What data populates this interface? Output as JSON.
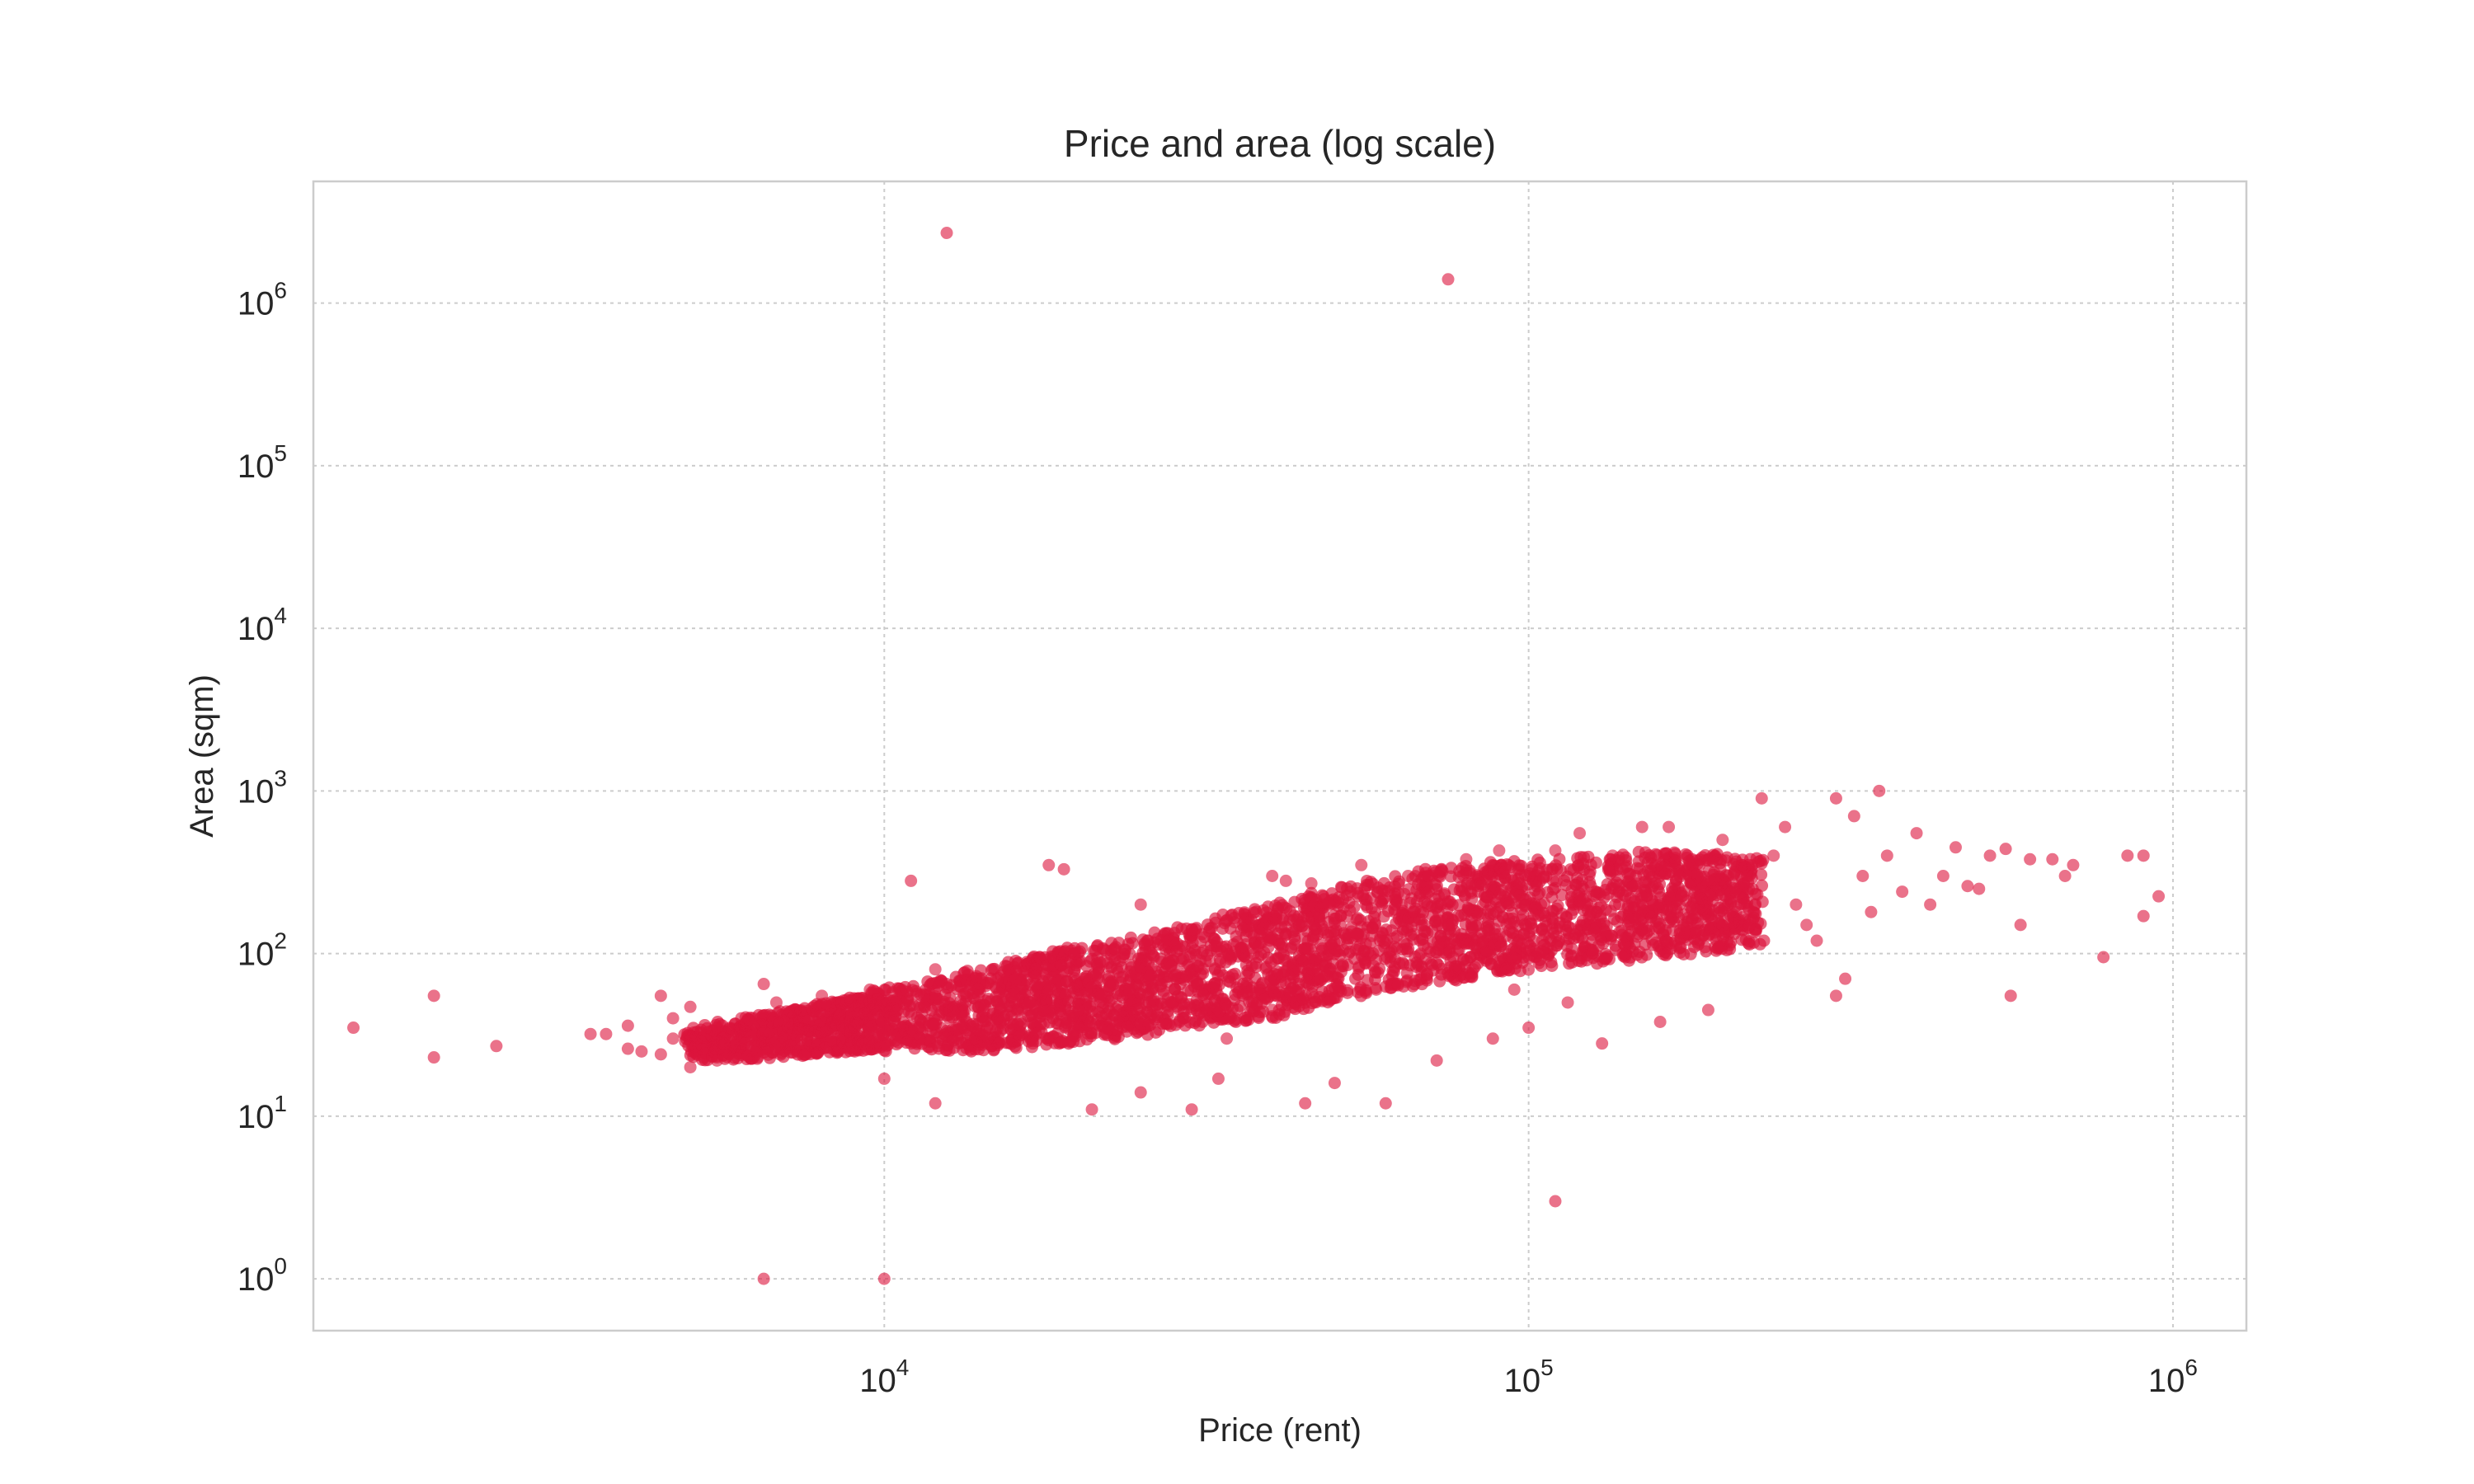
{
  "chart_data": {
    "type": "scatter",
    "title": "Price and area (log scale)",
    "xlabel": "Price (rent)",
    "ylabel": "Area (sqm)",
    "xscale": "log",
    "yscale": "log",
    "xlim": [
      1300,
      1300000
    ],
    "ylim": [
      0.48,
      5600000
    ],
    "xticks": [
      {
        "value": 10000,
        "base": "10",
        "exp": "4"
      },
      {
        "value": 100000,
        "base": "10",
        "exp": "5"
      },
      {
        "value": 1000000,
        "base": "10",
        "exp": "6"
      }
    ],
    "yticks": [
      {
        "value": 1,
        "base": "10",
        "exp": "0"
      },
      {
        "value": 10,
        "base": "10",
        "exp": "1"
      },
      {
        "value": 100,
        "base": "10",
        "exp": "2"
      },
      {
        "value": 1000,
        "base": "10",
        "exp": "3"
      },
      {
        "value": 10000,
        "base": "10",
        "exp": "4"
      },
      {
        "value": 100000,
        "base": "10",
        "exp": "5"
      },
      {
        "value": 1000000,
        "base": "10",
        "exp": "6"
      }
    ],
    "grid": true,
    "color": "#dc143c",
    "points": [
      [
        12500,
        2700000
      ],
      [
        75000,
        1400000
      ],
      [
        110000,
        3
      ],
      [
        6500,
        1
      ],
      [
        10000,
        1
      ],
      [
        1500,
        35
      ],
      [
        2000,
        55
      ],
      [
        2000,
        23
      ],
      [
        2500,
        27
      ],
      [
        3500,
        32
      ],
      [
        3700,
        32
      ],
      [
        4000,
        26
      ],
      [
        4000,
        36
      ],
      [
        4200,
        25
      ],
      [
        4500,
        24
      ],
      [
        4500,
        55
      ],
      [
        4700,
        40
      ],
      [
        4700,
        30
      ],
      [
        5000,
        47
      ],
      [
        5000,
        20
      ],
      [
        5500,
        35
      ],
      [
        5500,
        22
      ],
      [
        6000,
        40
      ],
      [
        6500,
        65
      ],
      [
        6800,
        50
      ],
      [
        7000,
        30
      ],
      [
        8000,
        55
      ],
      [
        8500,
        40
      ],
      [
        9000,
        25
      ],
      [
        9500,
        60
      ],
      [
        10000,
        17
      ],
      [
        10500,
        45
      ],
      [
        11000,
        280
      ],
      [
        11000,
        28
      ],
      [
        12000,
        12
      ],
      [
        12000,
        80
      ],
      [
        12500,
        65
      ],
      [
        13000,
        30
      ],
      [
        14000,
        55
      ],
      [
        15000,
        40
      ],
      [
        16000,
        70
      ],
      [
        17000,
        28
      ],
      [
        18000,
        350
      ],
      [
        18000,
        60
      ],
      [
        19000,
        330
      ],
      [
        20000,
        45
      ],
      [
        21000,
        11
      ],
      [
        21500,
        80
      ],
      [
        22000,
        35
      ],
      [
        24000,
        60
      ],
      [
        25000,
        14
      ],
      [
        25000,
        200
      ],
      [
        26000,
        100
      ],
      [
        28000,
        50
      ],
      [
        30000,
        11
      ],
      [
        30000,
        140
      ],
      [
        32000,
        90
      ],
      [
        33000,
        17
      ],
      [
        34000,
        30
      ],
      [
        35000,
        70
      ],
      [
        36000,
        150
      ],
      [
        38000,
        110
      ],
      [
        40000,
        300
      ],
      [
        40000,
        45
      ],
      [
        42000,
        280
      ],
      [
        44000,
        80
      ],
      [
        45000,
        12
      ],
      [
        46000,
        270
      ],
      [
        48000,
        200
      ],
      [
        50000,
        16
      ],
      [
        52000,
        130
      ],
      [
        55000,
        350
      ],
      [
        58000,
        60
      ],
      [
        60000,
        12
      ],
      [
        62000,
        180
      ],
      [
        65000,
        300
      ],
      [
        68000,
        100
      ],
      [
        70000,
        240
      ],
      [
        72000,
        22
      ],
      [
        75000,
        150
      ],
      [
        80000,
        380
      ],
      [
        82000,
        80
      ],
      [
        85000,
        200
      ],
      [
        88000,
        30
      ],
      [
        90000,
        430
      ],
      [
        95000,
        60
      ],
      [
        100000,
        35
      ],
      [
        100000,
        300
      ],
      [
        105000,
        120
      ],
      [
        110000,
        430
      ],
      [
        115000,
        50
      ],
      [
        120000,
        550
      ],
      [
        125000,
        200
      ],
      [
        130000,
        28
      ],
      [
        135000,
        400
      ],
      [
        140000,
        100
      ],
      [
        150000,
        600
      ],
      [
        155000,
        250
      ],
      [
        160000,
        38
      ],
      [
        165000,
        600
      ],
      [
        170000,
        180
      ],
      [
        180000,
        350
      ],
      [
        190000,
        45
      ],
      [
        200000,
        500
      ],
      [
        210000,
        250
      ],
      [
        220000,
        150
      ],
      [
        230000,
        900
      ],
      [
        240000,
        400
      ],
      [
        250000,
        600
      ],
      [
        260000,
        200
      ],
      [
        270000,
        150
      ],
      [
        280000,
        120
      ],
      [
        300000,
        900
      ],
      [
        300000,
        55
      ],
      [
        310000,
        70
      ],
      [
        320000,
        700
      ],
      [
        330000,
        300
      ],
      [
        340000,
        180
      ],
      [
        350000,
        1000
      ],
      [
        360000,
        400
      ],
      [
        380000,
        240
      ],
      [
        400000,
        550
      ],
      [
        420000,
        200
      ],
      [
        440000,
        300
      ],
      [
        460000,
        450
      ],
      [
        480000,
        260
      ],
      [
        500000,
        250
      ],
      [
        520000,
        400
      ],
      [
        550000,
        440
      ],
      [
        560000,
        55
      ],
      [
        580000,
        150
      ],
      [
        600000,
        380
      ],
      [
        650000,
        380
      ],
      [
        680000,
        300
      ],
      [
        700000,
        350
      ],
      [
        780000,
        95
      ],
      [
        850000,
        400
      ],
      [
        900000,
        170
      ],
      [
        900000,
        400
      ],
      [
        950000,
        225
      ]
    ],
    "dense_band": [
      [
        5000,
        22,
        35
      ],
      [
        6000,
        22,
        40
      ],
      [
        7000,
        23,
        45
      ],
      [
        8000,
        24,
        50
      ],
      [
        9000,
        25,
        55
      ],
      [
        10000,
        25,
        60
      ],
      [
        12000,
        25,
        70
      ],
      [
        14000,
        25,
        80
      ],
      [
        16000,
        26,
        90
      ],
      [
        18000,
        27,
        100
      ],
      [
        20000,
        28,
        110
      ],
      [
        23000,
        30,
        120
      ],
      [
        26000,
        32,
        130
      ],
      [
        30000,
        35,
        150
      ],
      [
        35000,
        38,
        180
      ],
      [
        40000,
        40,
        200
      ],
      [
        45000,
        45,
        230
      ],
      [
        50000,
        50,
        260
      ],
      [
        60000,
        60,
        300
      ],
      [
        70000,
        65,
        330
      ],
      [
        80000,
        70,
        350
      ],
      [
        90000,
        75,
        370
      ],
      [
        100000,
        80,
        380
      ],
      [
        120000,
        85,
        400
      ],
      [
        140000,
        90,
        420
      ],
      [
        160000,
        95,
        430
      ],
      [
        180000,
        100,
        420
      ],
      [
        200000,
        105,
        400
      ],
      [
        230000,
        110,
        380
      ]
    ]
  }
}
